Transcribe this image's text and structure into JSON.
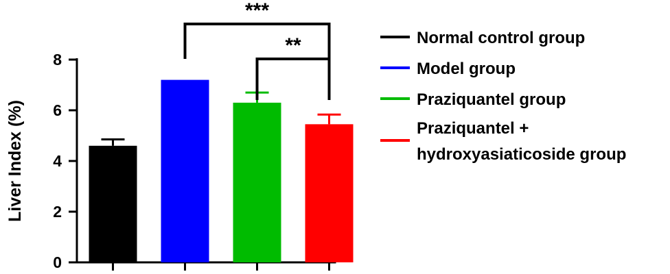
{
  "chart_data": {
    "type": "bar",
    "title": "",
    "xlabel": "",
    "ylabel": "Liver Index (%)",
    "ylim": [
      0,
      8
    ],
    "yticks": [
      0,
      2,
      4,
      6,
      8
    ],
    "grid": false,
    "legend_position": "right",
    "categories": [
      "Normal control group",
      "Model group",
      "Praziquantel group",
      "Praziquantel + hydroxyasiaticoside group"
    ],
    "values": [
      4.6,
      7.2,
      6.3,
      5.45
    ],
    "errors": [
      0.25,
      0.0,
      0.4,
      0.38
    ],
    "colors": [
      "#000000",
      "#0000FF",
      "#00BB00",
      "#FF0000"
    ],
    "legend": [
      {
        "lines": [
          "Normal control group"
        ],
        "color": "#000000"
      },
      {
        "lines": [
          "Model group"
        ],
        "color": "#0000FF"
      },
      {
        "lines": [
          "Praziquantel group"
        ],
        "color": "#00BB00"
      },
      {
        "lines": [
          "Praziquantel  +",
          "hydroxyasiaticoside group"
        ],
        "color": "#FF0000"
      }
    ],
    "significance": [
      {
        "from": 1,
        "to": 3,
        "label": "***"
      },
      {
        "from": 2,
        "to": 3,
        "label": "**"
      }
    ]
  }
}
